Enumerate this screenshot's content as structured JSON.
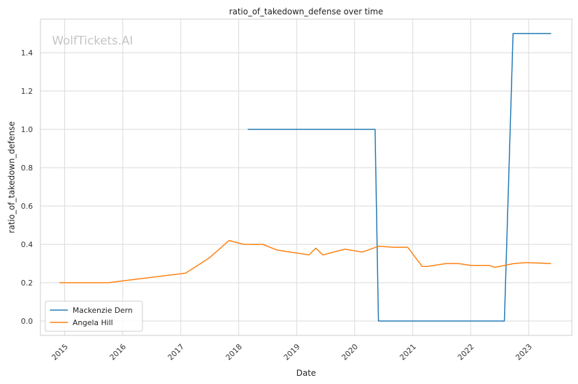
{
  "chart_data": {
    "type": "line",
    "title": "ratio_of_takedown_defense over time",
    "xlabel": "Date",
    "ylabel": "ratio_of_takedown_defense",
    "watermark": "WolfTickets.AI",
    "x_ticks": [
      "2015",
      "2016",
      "2017",
      "2018",
      "2019",
      "2020",
      "2021",
      "2022",
      "2023"
    ],
    "y_ticks": [
      "0.0",
      "0.2",
      "0.4",
      "0.6",
      "0.8",
      "1.0",
      "1.2",
      "1.4"
    ],
    "xlim": [
      "2014-08-01",
      "2023-09-30"
    ],
    "ylim": [
      -0.075,
      1.575
    ],
    "grid": true,
    "legend_position": "lower-left",
    "series": [
      {
        "name": "Mackenzie Dern",
        "color": "#1f77b4",
        "points": [
          [
            "2018-03-01",
            1.0
          ],
          [
            "2020-05-09",
            1.0
          ],
          [
            "2020-05-30",
            0.0
          ],
          [
            "2022-08-01",
            0.0
          ],
          [
            "2022-09-25",
            1.5
          ],
          [
            "2023-05-20",
            1.5
          ]
        ]
      },
      {
        "name": "Angela Hill",
        "color": "#ff7f0e",
        "points": [
          [
            "2014-12-01",
            0.2
          ],
          [
            "2015-10-01",
            0.2
          ],
          [
            "2017-02-01",
            0.25
          ],
          [
            "2017-07-01",
            0.33
          ],
          [
            "2017-11-01",
            0.42
          ],
          [
            "2018-02-01",
            0.4
          ],
          [
            "2018-06-01",
            0.4
          ],
          [
            "2018-09-01",
            0.37
          ],
          [
            "2019-01-01",
            0.355
          ],
          [
            "2019-03-20",
            0.345
          ],
          [
            "2019-05-01",
            0.38
          ],
          [
            "2019-06-15",
            0.345
          ],
          [
            "2019-11-01",
            0.375
          ],
          [
            "2020-02-20",
            0.36
          ],
          [
            "2020-05-30",
            0.39
          ],
          [
            "2020-09-01",
            0.385
          ],
          [
            "2020-11-30",
            0.385
          ],
          [
            "2021-03-01",
            0.285
          ],
          [
            "2021-04-01",
            0.285
          ],
          [
            "2021-08-01",
            0.3
          ],
          [
            "2021-10-15",
            0.3
          ],
          [
            "2022-01-01",
            0.29
          ],
          [
            "2022-05-01",
            0.29
          ],
          [
            "2022-06-01",
            0.28
          ],
          [
            "2022-10-01",
            0.3
          ],
          [
            "2022-12-15",
            0.305
          ],
          [
            "2023-05-20",
            0.3
          ]
        ]
      }
    ]
  },
  "colors": {
    "grid": "#d9d9d9",
    "axis_border": "#cccccc",
    "background": "#ffffff"
  }
}
